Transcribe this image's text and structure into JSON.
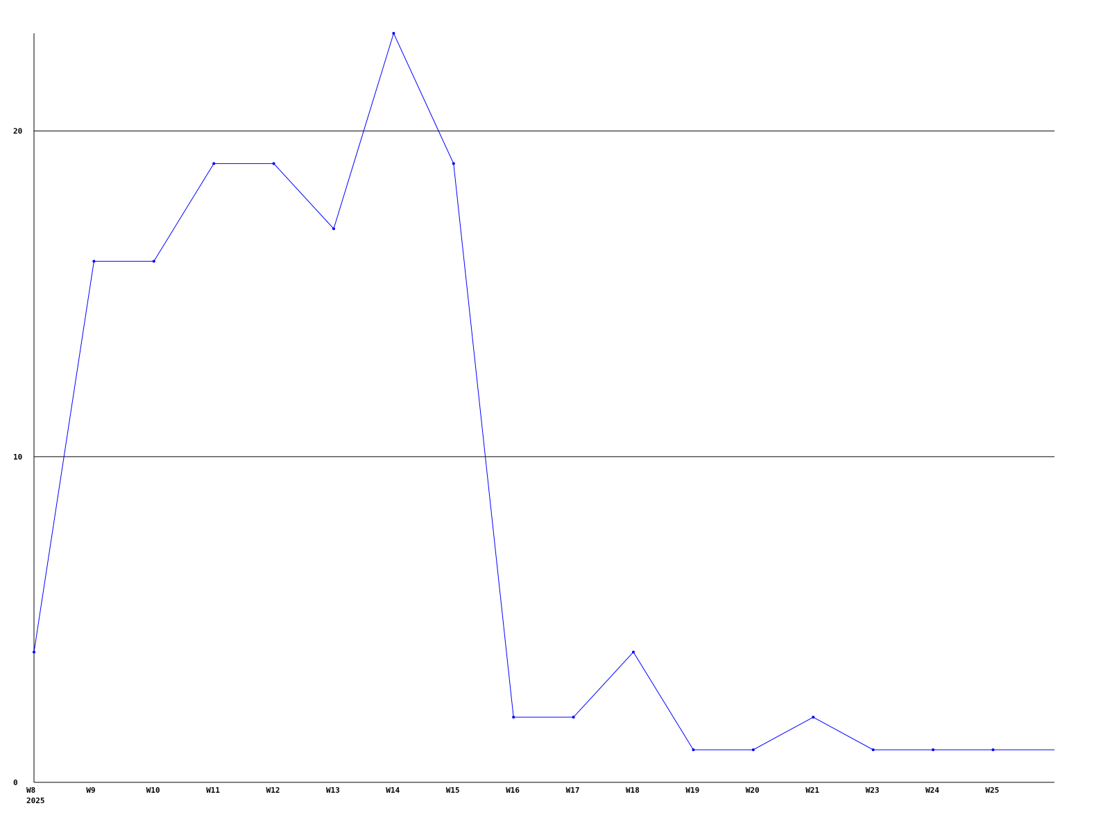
{
  "chart_data": {
    "type": "line",
    "title": "",
    "xlabel": "",
    "ylabel": "",
    "year_label": "2025",
    "categories": [
      "W8",
      "W9",
      "W10",
      "W11",
      "W12",
      "W13",
      "W14",
      "W15",
      "W16",
      "W17",
      "W18",
      "W19",
      "W20",
      "W21",
      "W23",
      "W24",
      "W25"
    ],
    "values": [
      4,
      16,
      16,
      19,
      19,
      17,
      23,
      19,
      2,
      2,
      4,
      1,
      1,
      2,
      1,
      1,
      1
    ],
    "ylim": [
      0,
      23
    ],
    "yticks": [
      0,
      10,
      20
    ],
    "grid": true,
    "line_color": "#0000ff",
    "axis_color": "#000000"
  }
}
